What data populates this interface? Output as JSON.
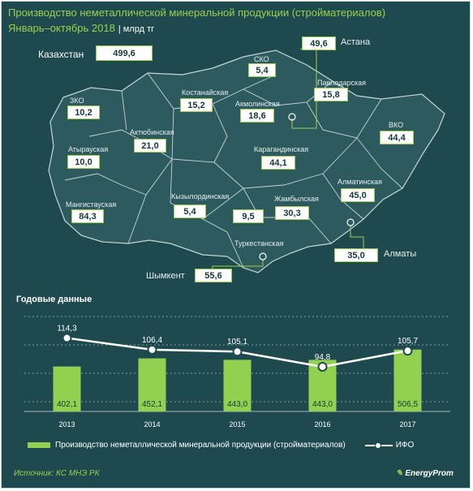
{
  "header": {
    "title": "Производство неметаллической минеральной продукции (стройматериалов)",
    "subtitle": "Январь–октябрь 2018",
    "unit": "| млрд тг"
  },
  "map": {
    "total_label": "Казахстан",
    "total_value": "499,6",
    "regions": [
      {
        "name": "ЗКО",
        "value": "10,2"
      },
      {
        "name": "Атырауская",
        "value": "10,0"
      },
      {
        "name": "Мангистауская",
        "value": "84,3"
      },
      {
        "name": "Актюбинская",
        "value": "21,0"
      },
      {
        "name": "Костанайская",
        "value": "15,2"
      },
      {
        "name": "СКО",
        "value": "5,4"
      },
      {
        "name": "Акмолинская",
        "value": "18,6"
      },
      {
        "name": "Павлодарская",
        "value": "15,8"
      },
      {
        "name": "ВКО",
        "value": "44,4"
      },
      {
        "name": "Карагандинская",
        "value": "44,1"
      },
      {
        "name": "Кызылординская",
        "value": "5,4"
      },
      {
        "name": "Жамбылская",
        "value": "30,3"
      },
      {
        "name": "Алматинская",
        "value": "45,0"
      },
      {
        "name": "Туркестанская",
        "value": "9,5"
      }
    ],
    "cities": [
      {
        "name": "Астана",
        "value": "49,6"
      },
      {
        "name": "Алматы",
        "value": "35,0"
      },
      {
        "name": "Шымкент",
        "value": "55,6"
      }
    ]
  },
  "annual": {
    "title": "Годовые данные"
  },
  "chart_data": {
    "type": "bar",
    "categories": [
      "2013",
      "2014",
      "2015",
      "2016",
      "2017"
    ],
    "series": [
      {
        "name": "Производство неметаллической минеральной продукции (стройматериалов)",
        "type": "bar",
        "values": [
          402.1,
          452.1,
          443.0,
          443.0,
          506.5
        ],
        "labels": [
          "402,1",
          "452,1",
          "443,0",
          "443,0",
          "506,5"
        ],
        "color": "#92d050"
      },
      {
        "name": "ИФО",
        "type": "line",
        "values": [
          114.3,
          106.4,
          105.1,
          94.8,
          105.7
        ],
        "labels": [
          "114,3",
          "106,4",
          "105,1",
          "94,8",
          "105,7"
        ],
        "color": "#ffffff"
      }
    ],
    "grid": true
  },
  "legend": {
    "bar_label": "Производство неметаллической минеральной продукции (стройматериалов)",
    "line_label": "ИФО"
  },
  "footer": {
    "source": "Источник: КС МНЭ РК",
    "logo": "EnergyProm"
  },
  "colors": {
    "background": "#1e4a4f",
    "accent": "#9ccf4e",
    "bar": "#92d050",
    "map_fill": "#2c5a5f",
    "map_border": "#c7d6d3"
  }
}
